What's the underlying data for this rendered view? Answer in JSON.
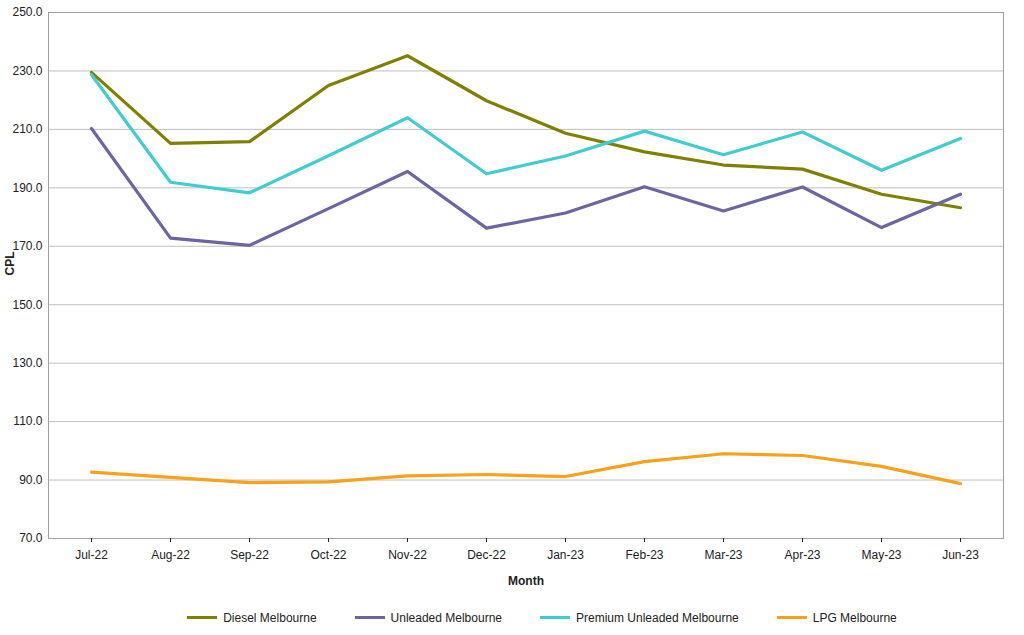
{
  "chart_data": {
    "type": "line",
    "x_label": "Month",
    "y_label": "CPL",
    "categories": [
      "Jul-22",
      "Aug-22",
      "Sep-22",
      "Oct-22",
      "Nov-22",
      "Dec-22",
      "Jan-23",
      "Feb-23",
      "Mar-23",
      "Apr-23",
      "May-23",
      "Jun-23"
    ],
    "series": [
      {
        "name": "Diesel Melbourne",
        "color": "#808000",
        "values": [
          229.5,
          205.2,
          205.8,
          225.0,
          235.2,
          219.8,
          208.7,
          202.3,
          197.8,
          196.4,
          187.8,
          183.2
        ]
      },
      {
        "name": "Unleaded Melbourne",
        "color": "#6b66a3",
        "values": [
          210.3,
          172.8,
          170.3,
          182.9,
          195.6,
          176.2,
          181.4,
          190.4,
          182.1,
          190.3,
          176.4,
          187.8
        ]
      },
      {
        "name": "Premium Unleaded Melbourne",
        "color": "#40cdd0",
        "values": [
          228.7,
          191.9,
          188.3,
          201.0,
          214.0,
          194.8,
          200.9,
          209.4,
          201.3,
          209.1,
          196.0,
          206.9
        ]
      },
      {
        "name": "LPG Melbourne",
        "color": "#f9a11b",
        "values": [
          92.7,
          90.9,
          89.1,
          89.4,
          91.4,
          91.9,
          91.2,
          96.3,
          99.0,
          98.4,
          94.7,
          88.8
        ]
      }
    ],
    "ylim": [
      70,
      250
    ],
    "yticks": [
      {
        "value": 70,
        "label": "70.0"
      },
      {
        "value": 90,
        "label": "90.0"
      },
      {
        "value": 110,
        "label": "110.0"
      },
      {
        "value": 130,
        "label": "130.0"
      },
      {
        "value": 150,
        "label": "150.0"
      },
      {
        "value": 170,
        "label": "170.0"
      },
      {
        "value": 190,
        "label": "190.0"
      },
      {
        "value": 210,
        "label": "210.0"
      },
      {
        "value": 230,
        "label": "230.0"
      },
      {
        "value": 250,
        "label": "250.0"
      }
    ],
    "grid": true,
    "legend": "bottom"
  }
}
